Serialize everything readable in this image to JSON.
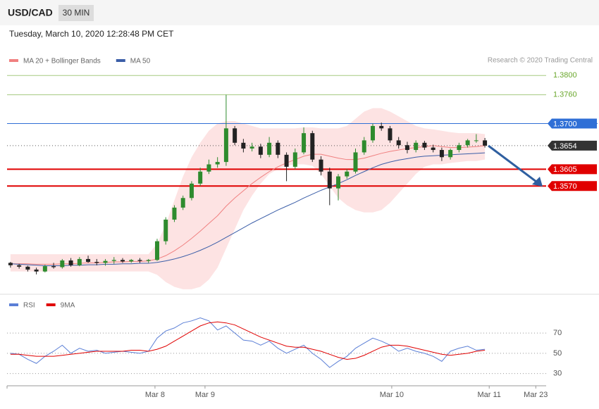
{
  "header": {
    "symbol": "USD/CAD",
    "timeframe": "30 MIN",
    "datetime": "Tuesday, March 10, 2020 12:28:48 PM CET",
    "credit": "Research © 2020 Trading Central"
  },
  "chart_data": [
    {
      "type": "candlestick",
      "x": [
        0,
        1,
        2,
        3,
        4,
        5,
        6,
        7,
        8,
        9,
        10,
        11,
        12,
        13,
        14,
        15,
        16,
        17,
        18,
        19,
        20,
        21,
        22,
        23,
        24,
        25,
        26,
        27,
        28,
        29,
        30,
        31,
        32,
        33,
        34,
        35,
        36,
        37,
        38,
        39,
        40,
        41,
        42,
        43,
        44,
        45,
        46,
        47,
        48,
        49,
        50,
        51,
        52,
        53,
        54,
        55
      ],
      "open": [
        1.341,
        1.3405,
        1.3402,
        1.3396,
        1.3392,
        1.3403,
        1.3401,
        1.3415,
        1.3405,
        1.3418,
        1.3412,
        1.341,
        1.3414,
        1.3416,
        1.3413,
        1.3416,
        1.3414,
        1.3416,
        1.3455,
        1.35,
        1.3525,
        1.3545,
        1.3575,
        1.36,
        1.3615,
        1.362,
        1.369,
        1.366,
        1.3648,
        1.3652,
        1.3635,
        1.366,
        1.3635,
        1.361,
        1.364,
        1.368,
        1.3625,
        1.36,
        1.3565,
        1.359,
        1.36,
        1.364,
        1.3665,
        1.3695,
        1.369,
        1.3665,
        1.3655,
        1.3645,
        1.366,
        1.365,
        1.3645,
        1.363,
        1.3645,
        1.3655,
        1.3665,
        1.3665
      ],
      "high": [
        1.3412,
        1.3408,
        1.3404,
        1.34,
        1.3406,
        1.341,
        1.3418,
        1.342,
        1.3422,
        1.3425,
        1.3418,
        1.3418,
        1.3422,
        1.342,
        1.3418,
        1.342,
        1.3418,
        1.346,
        1.3505,
        1.353,
        1.355,
        1.358,
        1.3608,
        1.3625,
        1.363,
        1.376,
        1.3695,
        1.3668,
        1.366,
        1.3658,
        1.3672,
        1.3665,
        1.364,
        1.3648,
        1.3692,
        1.3685,
        1.3632,
        1.3608,
        1.3595,
        1.3605,
        1.3648,
        1.3672,
        1.37,
        1.3702,
        1.3695,
        1.3672,
        1.3662,
        1.3665,
        1.3664,
        1.3656,
        1.365,
        1.3648,
        1.366,
        1.3668,
        1.3678,
        1.367
      ],
      "low": [
        1.34,
        1.3398,
        1.3392,
        1.3386,
        1.339,
        1.3398,
        1.3398,
        1.3402,
        1.3403,
        1.341,
        1.3405,
        1.3404,
        1.3408,
        1.341,
        1.341,
        1.341,
        1.341,
        1.3414,
        1.3448,
        1.3495,
        1.352,
        1.354,
        1.357,
        1.3595,
        1.3608,
        1.3612,
        1.3655,
        1.364,
        1.3642,
        1.3628,
        1.363,
        1.3628,
        1.358,
        1.3605,
        1.3636,
        1.362,
        1.3592,
        1.353,
        1.354,
        1.3585,
        1.3596,
        1.3635,
        1.366,
        1.3685,
        1.366,
        1.3648,
        1.3638,
        1.364,
        1.3645,
        1.364,
        1.3622,
        1.3625,
        1.364,
        1.365,
        1.366,
        1.365
      ],
      "close": [
        1.3405,
        1.3402,
        1.3396,
        1.3392,
        1.3403,
        1.3401,
        1.3415,
        1.3405,
        1.3418,
        1.3412,
        1.341,
        1.3414,
        1.3416,
        1.3413,
        1.3416,
        1.3414,
        1.3416,
        1.3455,
        1.35,
        1.3525,
        1.3545,
        1.3575,
        1.36,
        1.3615,
        1.362,
        1.369,
        1.366,
        1.3648,
        1.3652,
        1.3635,
        1.366,
        1.3635,
        1.361,
        1.364,
        1.368,
        1.3625,
        1.36,
        1.3565,
        1.359,
        1.36,
        1.364,
        1.3665,
        1.3695,
        1.369,
        1.3665,
        1.3655,
        1.3645,
        1.366,
        1.365,
        1.3645,
        1.363,
        1.3645,
        1.3655,
        1.3665,
        1.3665,
        1.3654
      ],
      "up_color": "#2e8b2e",
      "down_color": "#222222",
      "band": {
        "name": "MA 20 + Bollinger Bands",
        "color": "#fde3e3",
        "upper": [
          1.3428,
          1.3428,
          1.3428,
          1.3428,
          1.3428,
          1.3428,
          1.3428,
          1.3428,
          1.3428,
          1.3428,
          1.3428,
          1.3428,
          1.3428,
          1.3428,
          1.3428,
          1.3428,
          1.3428,
          1.345,
          1.349,
          1.354,
          1.359,
          1.363,
          1.366,
          1.3685,
          1.37,
          1.3705,
          1.3705,
          1.37,
          1.3695,
          1.369,
          1.369,
          1.369,
          1.369,
          1.369,
          1.3692,
          1.3692,
          1.369,
          1.369,
          1.369,
          1.3695,
          1.371,
          1.3725,
          1.3732,
          1.3732,
          1.3725,
          1.3715,
          1.3705,
          1.3695,
          1.369,
          1.3688,
          1.3685,
          1.3682,
          1.368,
          1.368,
          1.368,
          1.3678
        ],
        "lower": [
          1.3392,
          1.3392,
          1.3392,
          1.3392,
          1.3392,
          1.3392,
          1.3392,
          1.3392,
          1.3392,
          1.3392,
          1.3392,
          1.3392,
          1.3392,
          1.3392,
          1.3392,
          1.3392,
          1.3392,
          1.3385,
          1.337,
          1.336,
          1.3355,
          1.3355,
          1.336,
          1.3375,
          1.34,
          1.344,
          1.348,
          1.352,
          1.355,
          1.3575,
          1.3595,
          1.3605,
          1.3612,
          1.3615,
          1.3615,
          1.3612,
          1.3595,
          1.357,
          1.3545,
          1.353,
          1.352,
          1.3515,
          1.3515,
          1.352,
          1.3535,
          1.3555,
          1.3575,
          1.3595,
          1.361,
          1.3615,
          1.3615,
          1.3618,
          1.362,
          1.3622,
          1.3622,
          1.3625
        ]
      },
      "series": [
        {
          "name": "MA 20 + Bollinger Bands",
          "color": "#f08080",
          "values": [
            1.3408,
            1.3408,
            1.3408,
            1.3407,
            1.3407,
            1.3407,
            1.3408,
            1.3408,
            1.3409,
            1.341,
            1.341,
            1.3411,
            1.3412,
            1.3412,
            1.3413,
            1.3413,
            1.3414,
            1.3418,
            1.3425,
            1.3435,
            1.3447,
            1.3461,
            1.3476,
            1.3492,
            1.3508,
            1.3528,
            1.3545,
            1.356,
            1.3575,
            1.3588,
            1.36,
            1.361,
            1.3618,
            1.3625,
            1.3632,
            1.3636,
            1.3636,
            1.3632,
            1.3628,
            1.3625,
            1.3625,
            1.3628,
            1.3633,
            1.3638,
            1.3642,
            1.3645,
            1.3648,
            1.365,
            1.3652,
            1.3654,
            1.3652,
            1.365,
            1.365,
            1.3651,
            1.3652,
            1.3654
          ]
        },
        {
          "name": "MA 50",
          "color": "#3b5ea8",
          "values": [
            1.3408,
            1.3407,
            1.3406,
            1.3405,
            1.3404,
            1.3404,
            1.3404,
            1.3405,
            1.3405,
            1.3406,
            1.3406,
            1.3407,
            1.3407,
            1.3408,
            1.3408,
            1.3409,
            1.3409,
            1.3411,
            1.3414,
            1.3418,
            1.3423,
            1.3429,
            1.3436,
            1.3444,
            1.3453,
            1.3463,
            1.3473,
            1.3483,
            1.3493,
            1.3502,
            1.3511,
            1.352,
            1.3528,
            1.3536,
            1.3545,
            1.3553,
            1.3561,
            1.3568,
            1.3575,
            1.3583,
            1.3592,
            1.36,
            1.3608,
            1.3615,
            1.362,
            1.3624,
            1.3627,
            1.363,
            1.3632,
            1.3633,
            1.3634,
            1.3635,
            1.3636,
            1.3637,
            1.3638,
            1.3639
          ]
        }
      ],
      "xlim": [
        -0.4,
        62.1
      ],
      "ylim": [
        1.3349,
        1.3818
      ],
      "yticks": [
        {
          "value": 1.38,
          "label": "1.3800"
        },
        {
          "value": 1.376,
          "label": "1.3760"
        },
        {
          "value": 1.37,
          "label": "1.3700"
        },
        1.3654,
        1.3605,
        {
          "value": 1.357,
          "label": "1.3570"
        }
      ],
      "ytick_colors": [
        "#6aa72c",
        "#6aa72c",
        "#2f6fd6",
        "#333333",
        "#e00000",
        "#e00000"
      ],
      "ytick_styles": [
        "thin",
        "thin",
        "box",
        "dotted",
        "thick",
        "thick"
      ]
    },
    {
      "type": "line",
      "x": [
        0,
        1,
        2,
        3,
        4,
        5,
        6,
        7,
        8,
        9,
        10,
        11,
        12,
        13,
        14,
        15,
        16,
        17,
        18,
        19,
        20,
        21,
        22,
        23,
        24,
        25,
        26,
        27,
        28,
        29,
        30,
        31,
        32,
        33,
        34,
        35,
        36,
        37,
        38,
        39,
        40,
        41,
        42,
        43,
        44,
        45,
        46,
        47,
        48,
        49,
        50,
        51,
        52,
        53,
        54,
        55
      ],
      "series": [
        {
          "name": "RSI",
          "color": "#5b7fd6",
          "values": [
            50,
            49,
            44,
            40,
            47,
            52,
            58,
            50,
            55,
            52,
            53,
            50,
            51,
            52,
            51,
            50,
            52,
            65,
            72,
            75,
            80,
            82,
            85,
            82,
            73,
            77,
            70,
            63,
            62,
            58,
            62,
            55,
            50,
            54,
            58,
            50,
            44,
            36,
            42,
            47,
            55,
            60,
            65,
            62,
            58,
            52,
            55,
            52,
            50,
            47,
            42,
            52,
            55,
            57,
            53,
            54
          ]
        },
        {
          "name": "9MA",
          "color": "#e00000",
          "values": [
            49,
            49,
            48,
            47,
            47,
            47,
            48,
            49,
            50,
            51,
            52,
            52,
            52,
            52,
            53,
            53,
            52,
            54,
            57,
            62,
            67,
            72,
            77,
            80,
            81,
            80,
            78,
            74,
            70,
            66,
            63,
            60,
            57,
            56,
            56,
            54,
            52,
            49,
            46,
            44,
            45,
            48,
            52,
            56,
            58,
            58,
            57,
            55,
            53,
            51,
            49,
            48,
            49,
            50,
            52,
            53
          ]
        }
      ],
      "xlim": [
        -0.4,
        62.1
      ],
      "ylim": [
        20,
        93
      ],
      "yticks": [
        30,
        50,
        70
      ],
      "xticks": [
        {
          "value": 16.75,
          "label": "Mar 8"
        },
        {
          "value": 22.55,
          "label": "Mar 9"
        },
        {
          "value": 44.2,
          "label": "Mar 10"
        },
        {
          "value": 55.5,
          "label": "Mar 11"
        },
        {
          "value": 60.9,
          "label": "Mar 23"
        }
      ]
    }
  ]
}
